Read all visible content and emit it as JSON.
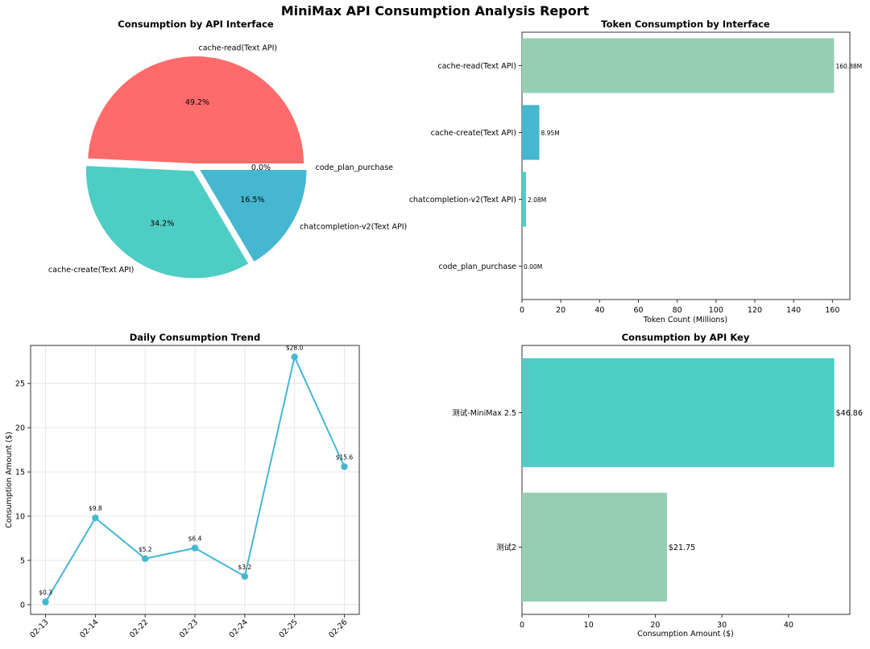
{
  "suptitle": "MiniMax API Consumption Analysis Report",
  "colors": {
    "red": "#ff6b6b",
    "teal": "#4ecdc4",
    "blue": "#45b7d1",
    "green": "#96ceb4",
    "line": "#45b7d1",
    "grid": "#e6e6e6"
  },
  "chart_data": [
    {
      "type": "pie",
      "title": "Consumption by API Interface",
      "labels": [
        "cache-read(Text API)",
        "cache-create(Text API)",
        "chatcompletion-v2(Text API)",
        "code_plan_purchase"
      ],
      "values": [
        49.2,
        34.2,
        16.5,
        0.0
      ],
      "pct_labels": [
        "49.2%",
        "34.2%",
        "16.5%",
        "0.0%"
      ],
      "colors": [
        "#ff6b6b",
        "#4ecdc4",
        "#45b7d1",
        "#96ceb4"
      ]
    },
    {
      "type": "bar",
      "orientation": "horizontal",
      "title": "Token Consumption by Interface",
      "categories": [
        "cache-read(Text API)",
        "cache-create(Text API)",
        "chatcompletion-v2(Text API)",
        "code_plan_purchase"
      ],
      "values": [
        160.88,
        8.95,
        2.08,
        0.0
      ],
      "value_labels": [
        "160.88M",
        "8.95M",
        "2.08M",
        "0.00M"
      ],
      "colors": [
        "#96ceb4",
        "#45b7d1",
        "#4ecdc4",
        "#ff6b6b"
      ],
      "xlabel": "Token Count (Millions)",
      "xlim": [
        0,
        169
      ],
      "xticks": [
        0,
        20,
        40,
        60,
        80,
        100,
        120,
        140,
        160
      ]
    },
    {
      "type": "line",
      "title": "Daily Consumption Trend",
      "x": [
        "02-13",
        "02-14",
        "02-22",
        "02-23",
        "02-24",
        "02-25",
        "02-26"
      ],
      "y": [
        0.3,
        9.8,
        5.2,
        6.4,
        3.2,
        28.0,
        15.6
      ],
      "point_labels": [
        "$0.3",
        "$9.8",
        "$5.2",
        "$6.4",
        "$3.2",
        "$28.0",
        "$15.6"
      ],
      "ylabel": "Consumption Amount ($)",
      "ylim": [
        -1.1,
        29.3
      ],
      "yticks": [
        0,
        5,
        10,
        15,
        20,
        25
      ],
      "grid": true
    },
    {
      "type": "bar",
      "orientation": "horizontal",
      "title": "Consumption by API Key",
      "categories": [
        "测试-MiniMax 2.5",
        "测试2"
      ],
      "values": [
        46.86,
        21.75
      ],
      "value_labels": [
        "$46.86",
        "$21.75"
      ],
      "colors": [
        "#4ecdc4",
        "#96ceb4"
      ],
      "xlabel": "Consumption Amount ($)",
      "xlim": [
        0,
        49.2
      ],
      "xticks": [
        0,
        10,
        20,
        30,
        40
      ]
    }
  ]
}
